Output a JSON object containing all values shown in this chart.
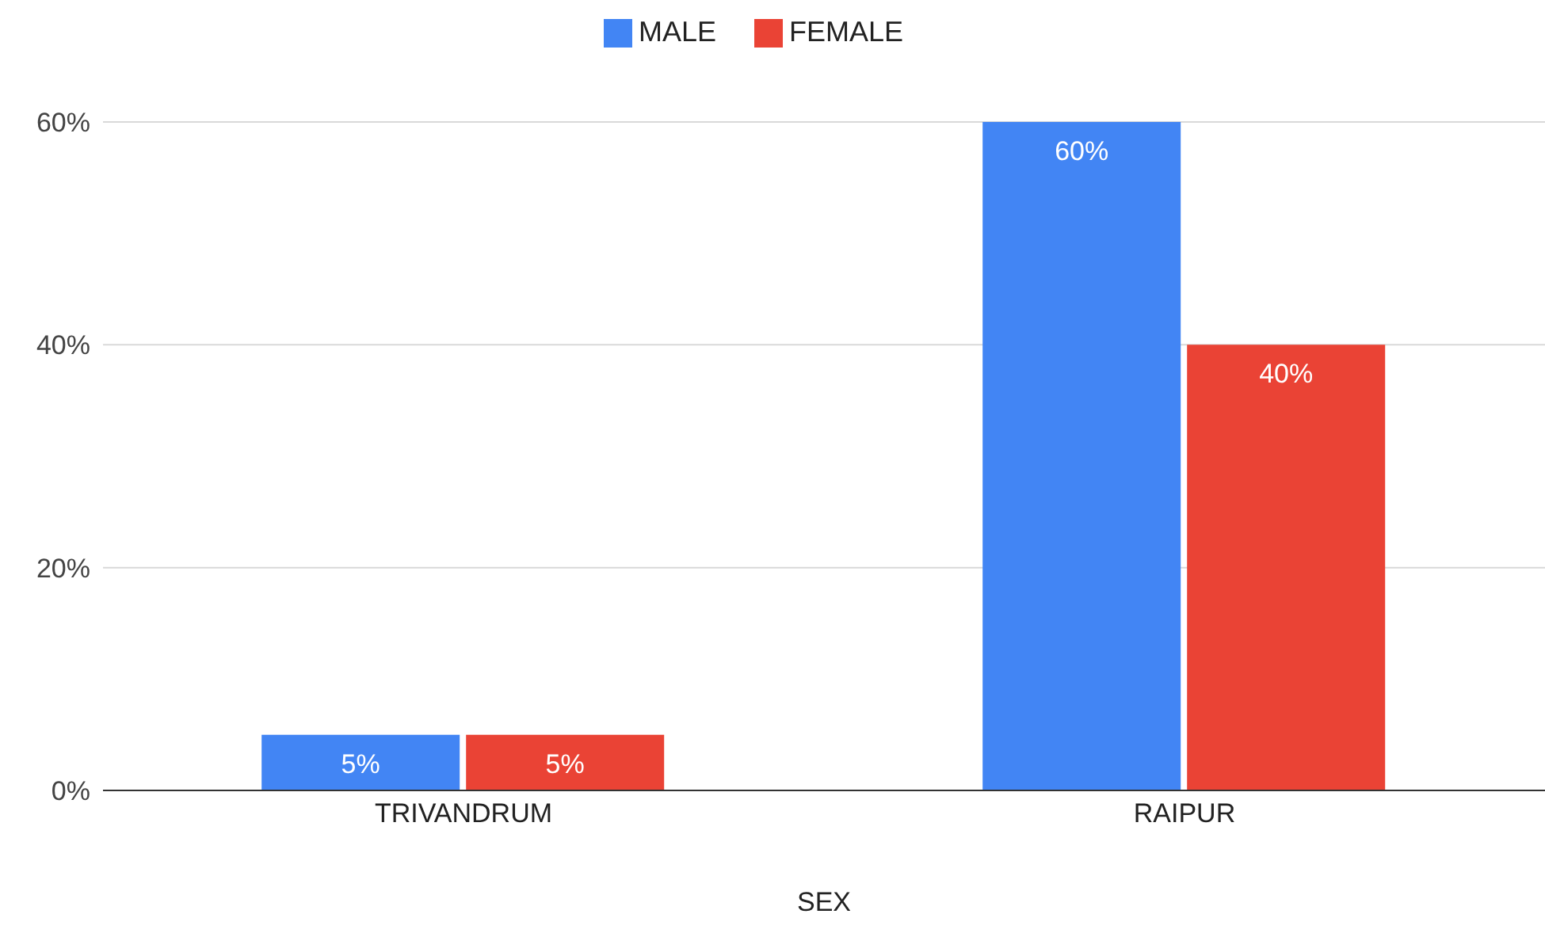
{
  "chart_data": {
    "type": "bar",
    "xlabel": "SEX",
    "categories": [
      "TRIVANDRUM",
      "RAIPUR"
    ],
    "series": [
      {
        "name": "MALE",
        "color": "#4285f4",
        "values": [
          5,
          60
        ],
        "value_labels": [
          "5%",
          "60%"
        ]
      },
      {
        "name": "FEMALE",
        "color": "#ea4335",
        "values": [
          5,
          40
        ],
        "value_labels": [
          "5%",
          "40%"
        ]
      }
    ],
    "ylim": [
      0,
      60
    ],
    "yticks": [
      {
        "value": 0,
        "label": "0%"
      },
      {
        "value": 20,
        "label": "20%"
      },
      {
        "value": 40,
        "label": "40%"
      },
      {
        "value": 60,
        "label": "60%"
      }
    ],
    "grid": "y",
    "legend": "top"
  }
}
